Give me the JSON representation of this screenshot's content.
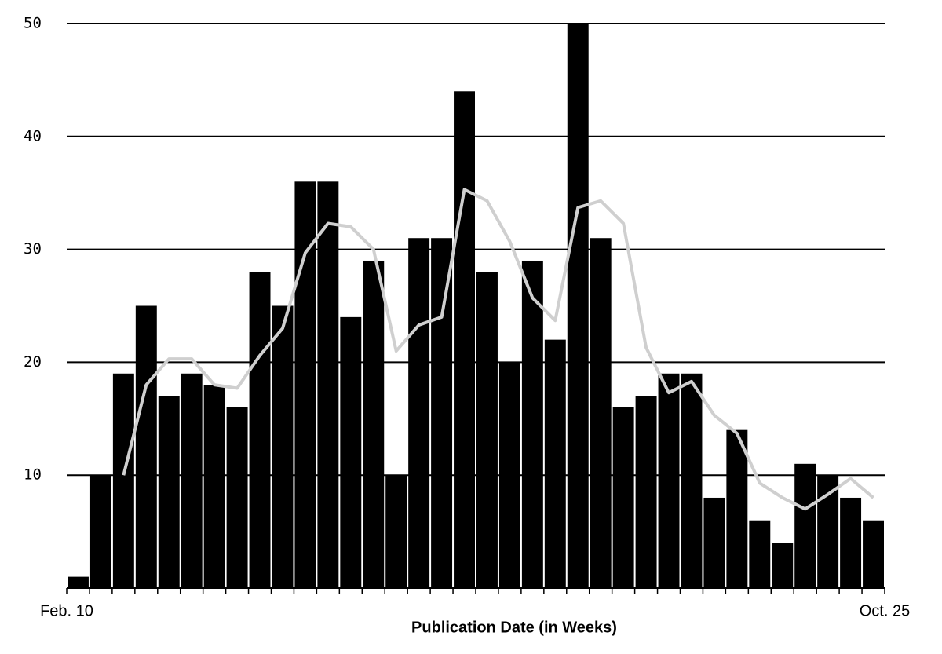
{
  "chart_data": {
    "type": "bar",
    "x_label": "Publication Date (in Weeks)",
    "categories": [
      "Feb. 10",
      null,
      null,
      null,
      null,
      null,
      null,
      null,
      null,
      null,
      null,
      null,
      null,
      null,
      null,
      null,
      null,
      null,
      null,
      null,
      null,
      null,
      null,
      null,
      null,
      null,
      null,
      null,
      null,
      null,
      null,
      null,
      null,
      null,
      null,
      "Oct. 25"
    ],
    "series": [
      {
        "type": "bar",
        "color": "#000000",
        "values": [
          1,
          10,
          19,
          25,
          17,
          19,
          18,
          16,
          28,
          25,
          36,
          36,
          24,
          29,
          10,
          31,
          31,
          44,
          28,
          20,
          29,
          22,
          50,
          31,
          16,
          17,
          19,
          19,
          8,
          14,
          6,
          4,
          11,
          10,
          8,
          6
        ]
      },
      {
        "type": "line",
        "color": "#cfcfcf",
        "values": [
          null,
          null,
          10,
          18,
          20.3,
          20.3,
          18,
          17.7,
          20.6,
          23,
          29.7,
          32.3,
          32,
          30,
          21,
          23.3,
          24,
          35.3,
          34.3,
          30.7,
          25.7,
          23.7,
          33.7,
          34.3,
          32.3,
          21.3,
          17.3,
          18.3,
          15.3,
          13.7,
          9.3,
          8,
          7,
          8.3,
          9.7,
          8
        ]
      }
    ],
    "ylim": [
      0,
      50
    ],
    "yticks": [
      10,
      20,
      30,
      40,
      50
    ],
    "grid": true
  }
}
